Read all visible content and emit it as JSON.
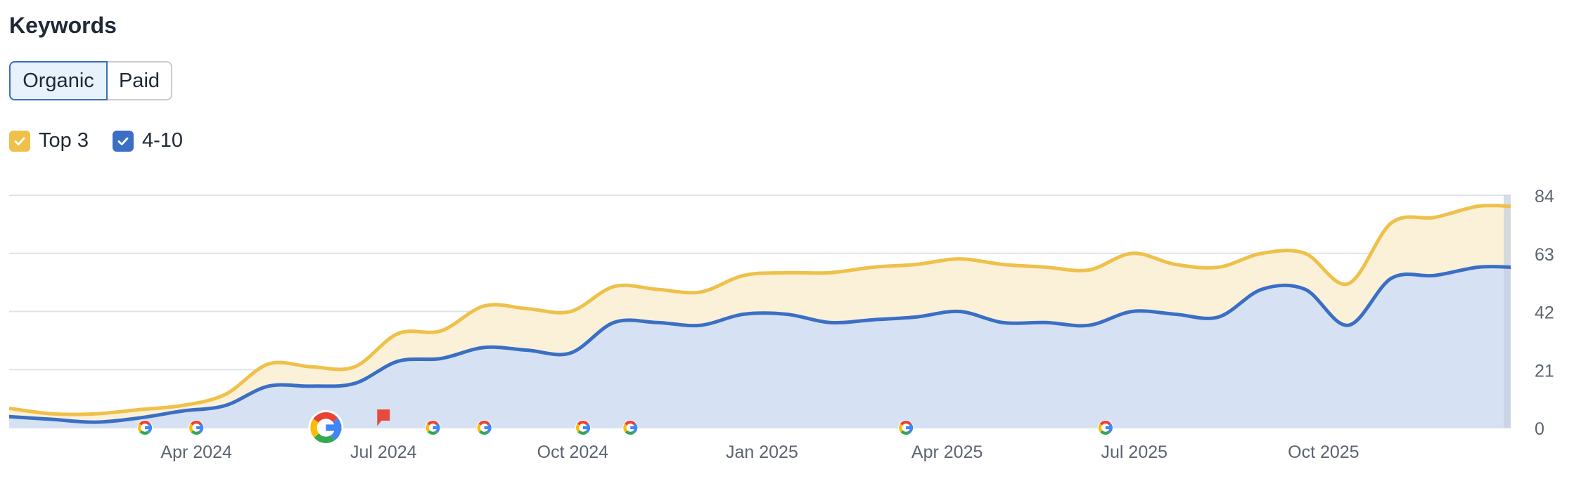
{
  "header": {
    "title": "Keywords"
  },
  "tabs": [
    {
      "label": "Organic",
      "active": true
    },
    {
      "label": "Paid",
      "active": false
    }
  ],
  "legend": [
    {
      "label": "Top 3",
      "color": "#efc04a",
      "checked": true,
      "icon": "check-icon"
    },
    {
      "label": "4-10",
      "color": "#3a6fc4",
      "checked": true,
      "icon": "check-icon"
    }
  ],
  "colors": {
    "top3_line": "#efc04a",
    "top3_fill": "#faf1d8",
    "pos4_10_line": "#3a6fc4",
    "pos4_10_fill": "#d6e2f4",
    "grid": "#dfe3e8",
    "axis_text": "#5b6470",
    "note_flag": "#e54b3c"
  },
  "chart_data": {
    "type": "area",
    "stacked": true,
    "ylim": [
      0,
      84
    ],
    "y_ticks": [
      0,
      21,
      42,
      63,
      84
    ],
    "y_axis_position": "right",
    "grid": true,
    "x_range": [
      "2024-01-01",
      "2025-12-31"
    ],
    "x_tick_labels": [
      {
        "date": "2024-04-01",
        "label": "Apr 2024"
      },
      {
        "date": "2024-07-01",
        "label": "Jul 2024"
      },
      {
        "date": "2024-10-01",
        "label": "Oct 2024"
      },
      {
        "date": "2025-01-01",
        "label": "Jan 2025"
      },
      {
        "date": "2025-04-01",
        "label": "Apr 2025"
      },
      {
        "date": "2025-07-01",
        "label": "Jul 2025"
      },
      {
        "date": "2025-10-01",
        "label": "Oct 2025"
      }
    ],
    "series": [
      {
        "name": "4-10",
        "points": [
          [
            "2024-01-01",
            4
          ],
          [
            "2024-01-22",
            3
          ],
          [
            "2024-02-12",
            2
          ],
          [
            "2024-03-04",
            3.5
          ],
          [
            "2024-03-25",
            6
          ],
          [
            "2024-04-15",
            8
          ],
          [
            "2024-05-06",
            15
          ],
          [
            "2024-05-27",
            15
          ],
          [
            "2024-06-17",
            16
          ],
          [
            "2024-07-08",
            24
          ],
          [
            "2024-07-29",
            25
          ],
          [
            "2024-08-19",
            29
          ],
          [
            "2024-09-09",
            28
          ],
          [
            "2024-09-30",
            27
          ],
          [
            "2024-10-21",
            38
          ],
          [
            "2024-11-11",
            38
          ],
          [
            "2024-12-02",
            37
          ],
          [
            "2024-12-23",
            41
          ],
          [
            "2025-01-13",
            41
          ],
          [
            "2025-02-03",
            38
          ],
          [
            "2025-02-24",
            39
          ],
          [
            "2025-03-17",
            40
          ],
          [
            "2025-04-07",
            42
          ],
          [
            "2025-04-28",
            38
          ],
          [
            "2025-05-19",
            38
          ],
          [
            "2025-06-09",
            37
          ],
          [
            "2025-06-30",
            42
          ],
          [
            "2025-07-21",
            41
          ],
          [
            "2025-08-11",
            40
          ],
          [
            "2025-09-01",
            50
          ],
          [
            "2025-09-22",
            50
          ],
          [
            "2025-10-13",
            37
          ],
          [
            "2025-11-03",
            54
          ],
          [
            "2025-11-24",
            55
          ],
          [
            "2025-12-15",
            58
          ],
          [
            "2025-12-31",
            58
          ]
        ]
      },
      {
        "name": "Top 3",
        "points": [
          [
            "2024-01-01",
            3
          ],
          [
            "2024-01-22",
            2
          ],
          [
            "2024-02-12",
            3
          ],
          [
            "2024-03-04",
            3
          ],
          [
            "2024-03-25",
            2
          ],
          [
            "2024-04-15",
            4
          ],
          [
            "2024-05-06",
            8
          ],
          [
            "2024-05-27",
            7
          ],
          [
            "2024-06-17",
            6
          ],
          [
            "2024-07-08",
            10
          ],
          [
            "2024-07-29",
            10
          ],
          [
            "2024-08-19",
            15
          ],
          [
            "2024-09-09",
            15
          ],
          [
            "2024-09-30",
            15
          ],
          [
            "2024-10-21",
            13
          ],
          [
            "2024-11-11",
            12
          ],
          [
            "2024-12-02",
            12
          ],
          [
            "2024-12-23",
            14
          ],
          [
            "2025-01-13",
            15
          ],
          [
            "2025-02-03",
            18
          ],
          [
            "2025-02-24",
            19
          ],
          [
            "2025-03-17",
            19
          ],
          [
            "2025-04-07",
            19
          ],
          [
            "2025-04-28",
            21
          ],
          [
            "2025-05-19",
            20
          ],
          [
            "2025-06-09",
            20
          ],
          [
            "2025-06-30",
            21
          ],
          [
            "2025-07-21",
            18
          ],
          [
            "2025-08-11",
            18
          ],
          [
            "2025-09-01",
            13
          ],
          [
            "2025-09-22",
            13
          ],
          [
            "2025-10-13",
            15
          ],
          [
            "2025-11-03",
            20
          ],
          [
            "2025-11-24",
            21
          ],
          [
            "2025-12-15",
            22
          ],
          [
            "2025-12-31",
            22
          ]
        ]
      }
    ],
    "events": [
      {
        "date": "2024-03-07",
        "type": "google-update",
        "icon": "google-icon"
      },
      {
        "date": "2024-04-01",
        "type": "google-update",
        "icon": "google-icon"
      },
      {
        "date": "2024-06-03",
        "type": "google-update-large",
        "icon": "google-icon"
      },
      {
        "date": "2024-07-01",
        "type": "note",
        "icon": "flag-icon"
      },
      {
        "date": "2024-07-25",
        "type": "google-update",
        "icon": "google-icon"
      },
      {
        "date": "2024-08-19",
        "type": "google-update",
        "icon": "google-icon"
      },
      {
        "date": "2024-10-06",
        "type": "google-update",
        "icon": "google-icon"
      },
      {
        "date": "2024-10-29",
        "type": "google-update",
        "icon": "google-icon"
      },
      {
        "date": "2025-03-12",
        "type": "google-update",
        "icon": "google-icon"
      },
      {
        "date": "2025-06-17",
        "type": "google-update",
        "icon": "google-icon"
      }
    ]
  }
}
